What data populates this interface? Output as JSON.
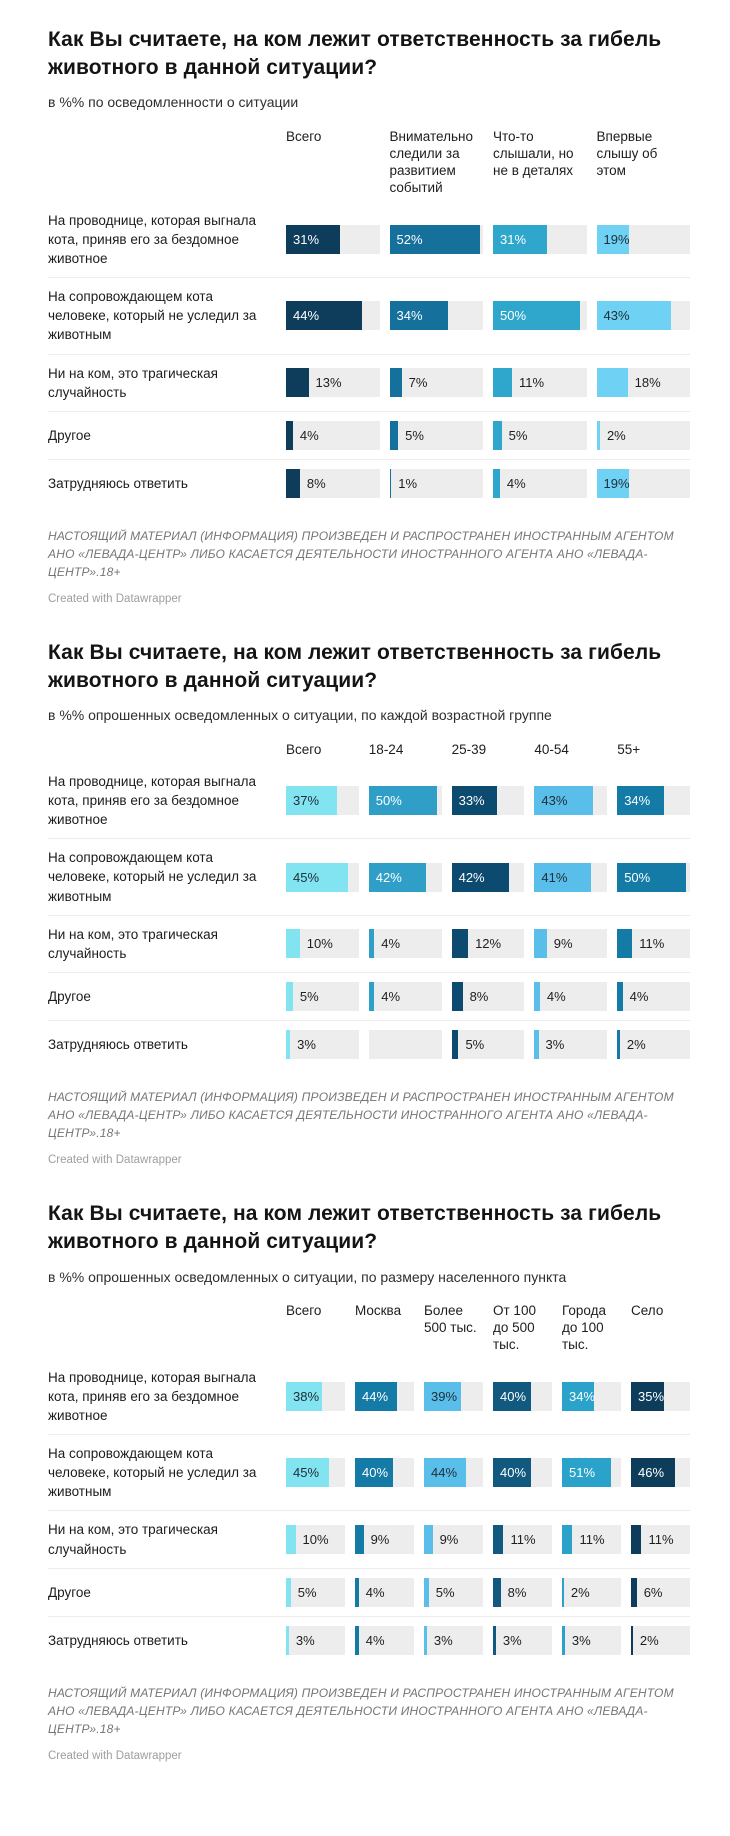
{
  "chart_data": [
    {
      "type": "bar",
      "title": "Как Вы считаете, на ком лежит ответственность за гибель животного в данной ситуации?",
      "subtitle": "в %% по осведомленности о ситуации",
      "legend_position": "column-headers",
      "grid": false,
      "value_format": "percent",
      "xlim": [
        0,
        54
      ],
      "columns": [
        {
          "label": "Всего",
          "color": "#0e3d5c",
          "text": "#ffffff"
        },
        {
          "label": "Внимательно следили за развитием событий",
          "color": "#15719c",
          "text": "#ffffff"
        },
        {
          "label": "Что-то слышали, но не в деталях",
          "color": "#2fa6cc",
          "text": "#ffffff"
        },
        {
          "label": "Впервые слышу об этом",
          "color": "#6fd1f3",
          "text": "#20303a"
        }
      ],
      "rows": [
        {
          "label": "На проводнице, которая выгнала кота, приняв его за бездомное животное",
          "values": [
            31,
            52,
            31,
            19
          ]
        },
        {
          "label": "На сопровождающем кота человеке, который не уследил за животным",
          "values": [
            44,
            34,
            50,
            43
          ]
        },
        {
          "label": "Ни на ком, это трагическая случайность",
          "values": [
            13,
            7,
            11,
            18
          ]
        },
        {
          "label": "Другое",
          "values": [
            4,
            5,
            5,
            2
          ]
        },
        {
          "label": "Затрудняюсь ответить",
          "values": [
            8,
            1,
            4,
            19
          ]
        }
      ],
      "render": {
        "scale_max": 54,
        "label_inside_min": 19
      },
      "notes": "НАСТОЯЩИЙ МАТЕРИАЛ (ИНФОРМАЦИЯ) ПРОИЗВЕДЕН И РАСПРОСТРАНЕН ИНОСТРАННЫМ АГЕНТОМ АНО «ЛЕВАДА-ЦЕНТР» ЛИБО КАСАЕТСЯ ДЕЯТЕЛЬНОСТИ ИНОСТРАННОГО АГЕНТА АНО «ЛЕВАДА-ЦЕНТР».18+",
      "attribution": "Created with Datawrapper"
    },
    {
      "type": "bar",
      "title": "Как Вы считаете, на ком лежит ответственность за гибель животного в данной ситуации?",
      "subtitle": "в %% опрошенных осведомленных о ситуации, по каждой возрастной группе",
      "legend_position": "column-headers",
      "grid": false,
      "value_format": "percent",
      "xlim": [
        0,
        53
      ],
      "columns": [
        {
          "label": "Всего",
          "color": "#82e4f0",
          "text": "#20303a"
        },
        {
          "label": "18-24",
          "color": "#2f9fc7",
          "text": "#ffffff"
        },
        {
          "label": "25-39",
          "color": "#0d4a70",
          "text": "#ffffff"
        },
        {
          "label": "40-54",
          "color": "#5abeea",
          "text": "#20303a"
        },
        {
          "label": "55+",
          "color": "#147aa6",
          "text": "#ffffff"
        }
      ],
      "rows": [
        {
          "label": "На проводнице, которая выгнала кота, приняв его за бездомное животное",
          "values": [
            37,
            50,
            33,
            43,
            34
          ]
        },
        {
          "label": "На сопровождающем кота человеке, который не уследил за животным",
          "values": [
            45,
            42,
            42,
            41,
            50
          ]
        },
        {
          "label": "Ни на ком, это трагическая случайность",
          "values": [
            10,
            4,
            12,
            9,
            11
          ]
        },
        {
          "label": "Другое",
          "values": [
            5,
            4,
            8,
            4,
            4
          ]
        },
        {
          "label": "Затрудняюсь ответить",
          "values": [
            3,
            null,
            5,
            3,
            2
          ]
        }
      ],
      "render": {
        "scale_max": 53,
        "label_inside_min": 20
      },
      "notes": "НАСТОЯЩИЙ МАТЕРИАЛ (ИНФОРМАЦИЯ) ПРОИЗВЕДЕН И РАСПРОСТРАНЕН ИНОСТРАННЫМ АГЕНТОМ АНО «ЛЕВАДА-ЦЕНТР» ЛИБО КАСАЕТСЯ ДЕЯТЕЛЬНОСТИ ИНОСТРАННОГО АГЕНТА АНО «ЛЕВАДА-ЦЕНТР».18+",
      "attribution": "Created with Datawrapper"
    },
    {
      "type": "bar",
      "title": "Как Вы считаете, на ком лежит ответственность за гибель животного в данной ситуации?",
      "subtitle": "в %% опрошенных осведомленных о ситуации, по размеру населенного пункта",
      "legend_position": "column-headers",
      "grid": false,
      "value_format": "percent",
      "xlim": [
        0,
        62
      ],
      "columns": [
        {
          "label": "Всего",
          "color": "#82e4f0",
          "text": "#20303a"
        },
        {
          "label": "Москва",
          "color": "#147aa6",
          "text": "#ffffff"
        },
        {
          "label": "Более 500 тыс.",
          "color": "#5abeea",
          "text": "#20303a"
        },
        {
          "label": "От 100 до 500 тыс.",
          "color": "#11597f",
          "text": "#ffffff"
        },
        {
          "label": "Города до 100 тыс.",
          "color": "#2aa2c9",
          "text": "#ffffff"
        },
        {
          "label": "Село",
          "color": "#0e3d5c",
          "text": "#ffffff"
        }
      ],
      "rows": [
        {
          "label": "На проводнице, которая выгнала кота, приняв его за бездомное животное",
          "values": [
            38,
            44,
            39,
            40,
            34,
            35
          ]
        },
        {
          "label": "На сопровождающем кота человеке, который не уследил за животным",
          "values": [
            45,
            40,
            44,
            40,
            51,
            46
          ]
        },
        {
          "label": "Ни на ком, это трагическая случайность",
          "values": [
            10,
            9,
            9,
            11,
            11,
            11
          ]
        },
        {
          "label": "Другое",
          "values": [
            5,
            4,
            5,
            8,
            2,
            6
          ]
        },
        {
          "label": "Затрудняюсь ответить",
          "values": [
            3,
            4,
            3,
            3,
            3,
            2
          ]
        }
      ],
      "render": {
        "scale_max": 62,
        "label_inside_min": 20
      },
      "notes": "НАСТОЯЩИЙ МАТЕРИАЛ (ИНФОРМАЦИЯ) ПРОИЗВЕДЕН И РАСПРОСТРАНЕН ИНОСТРАННЫМ АГЕНТОМ АНО «ЛЕВАДА-ЦЕНТР» ЛИБО КАСАЕТСЯ ДЕЯТЕЛЬНОСТИ ИНОСТРАННОГО АГЕНТА АНО «ЛЕВАДА-ЦЕНТР».18+",
      "attribution": "Created with Datawrapper"
    }
  ]
}
